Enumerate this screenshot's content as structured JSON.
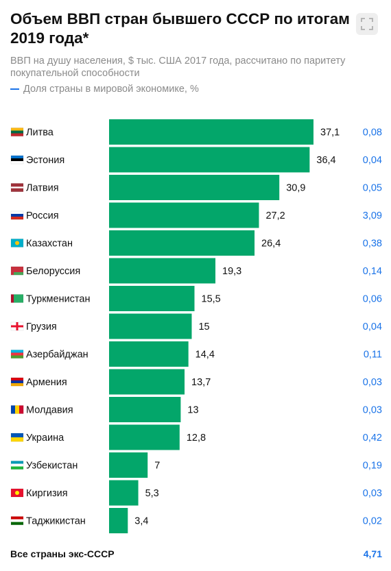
{
  "header": {
    "title": "Объем ВВП стран бывшего СССР по итогам 2019 года*",
    "subtitle": "ВВП на душу населения, $ тыс. США 2017 года, рассчитано по паритету покупательной способности",
    "legend_label": "Доля страны в мировой экономике, %"
  },
  "colors": {
    "bar": "#03a66a",
    "share": "#1a73e8"
  },
  "footer": {
    "label": "Все страны экс-СССР",
    "value": "4,71"
  },
  "chart_data": {
    "type": "bar",
    "orientation": "horizontal",
    "title": "Объем ВВП стран бывшего СССР по итогам 2019 года*",
    "xlim": [
      0,
      37.1
    ],
    "categories": [
      "Литва",
      "Эстония",
      "Латвия",
      "Россия",
      "Казахстан",
      "Белоруссия",
      "Туркменистан",
      "Грузия",
      "Азербайджан",
      "Армения",
      "Молдавия",
      "Украина",
      "Узбекистан",
      "Киргизия",
      "Таджикистан"
    ],
    "flags": [
      "flag-lithuania-icon",
      "flag-estonia-icon",
      "flag-latvia-icon",
      "flag-russia-icon",
      "flag-kazakhstan-icon",
      "flag-belarus-icon",
      "flag-turkmenistan-icon",
      "flag-georgia-icon",
      "flag-azerbaijan-icon",
      "flag-armenia-icon",
      "flag-moldova-icon",
      "flag-ukraine-icon",
      "flag-uzbekistan-icon",
      "flag-kyrgyzstan-icon",
      "flag-tajikistan-icon"
    ],
    "values": [
      37.1,
      36.4,
      30.9,
      27.2,
      26.4,
      19.3,
      15.5,
      15,
      14.4,
      13.7,
      13,
      12.8,
      7,
      5.3,
      3.4
    ],
    "value_labels": [
      "37,1",
      "36,4",
      "30,9",
      "27,2",
      "26,4",
      "19,3",
      "15,5",
      "15",
      "14,4",
      "13,7",
      "13",
      "12,8",
      "7",
      "5,3",
      "3,4"
    ],
    "shares": [
      0.08,
      0.04,
      0.05,
      3.09,
      0.38,
      0.14,
      0.06,
      0.04,
      0.11,
      0.03,
      0.03,
      0.42,
      0.19,
      0.03,
      0.02
    ],
    "share_labels": [
      "0,08",
      "0,04",
      "0,05",
      "3,09",
      "0,38",
      "0,14",
      "0,06",
      "0,04",
      "0,11",
      "0,03",
      "0,03",
      "0,42",
      "0,19",
      "0,03",
      "0,02"
    ]
  }
}
